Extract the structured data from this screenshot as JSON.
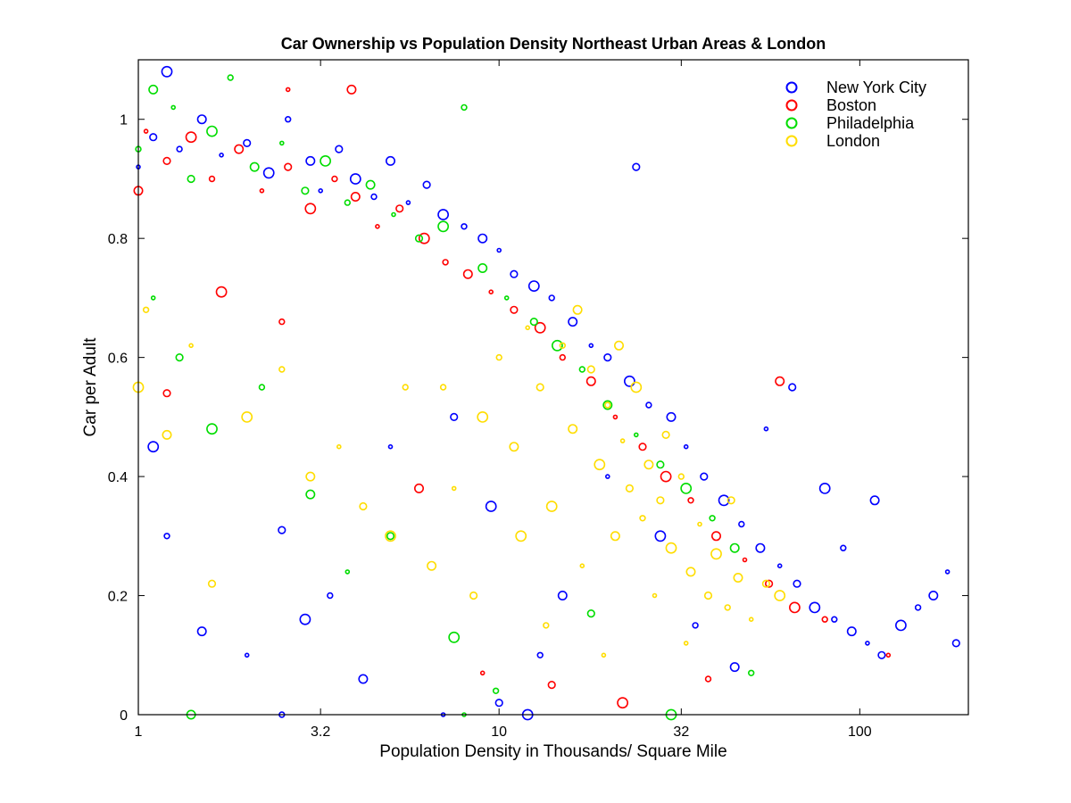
{
  "chart_data": {
    "type": "scatter",
    "title": "Car Ownership vs Population Density Northeast Urban Areas & London",
    "xlabel": "Population Density in Thousands/ Square Mile",
    "ylabel": "Car per Adult",
    "x_scale": "log",
    "xlim": [
      1,
      200
    ],
    "ylim": [
      0,
      1.1
    ],
    "x_ticks": [
      {
        "value": 1,
        "label": "1"
      },
      {
        "value": 3.2,
        "label": "3.2"
      },
      {
        "value": 10,
        "label": "10"
      },
      {
        "value": 32,
        "label": "32"
      },
      {
        "value": 100,
        "label": "100"
      }
    ],
    "y_ticks": [
      {
        "value": 0,
        "label": "0"
      },
      {
        "value": 0.2,
        "label": "0.2"
      },
      {
        "value": 0.4,
        "label": "0.4"
      },
      {
        "value": 0.6,
        "label": "0.6"
      },
      {
        "value": 0.8,
        "label": "0.8"
      },
      {
        "value": 1,
        "label": "1"
      }
    ],
    "grid": false,
    "marker": "open-circle",
    "legend_position": "top-right",
    "series": [
      {
        "name": "New York City",
        "color": "#0000ff",
        "points": [
          [
            1.0,
            0.92
          ],
          [
            1.1,
            0.97
          ],
          [
            1.2,
            1.08
          ],
          [
            1.3,
            0.95
          ],
          [
            1.5,
            1.0
          ],
          [
            1.7,
            0.94
          ],
          [
            2.0,
            0.96
          ],
          [
            2.3,
            0.91
          ],
          [
            2.6,
            1.0
          ],
          [
            3.0,
            0.93
          ],
          [
            3.2,
            0.88
          ],
          [
            3.6,
            0.95
          ],
          [
            4.0,
            0.9
          ],
          [
            4.5,
            0.87
          ],
          [
            5.0,
            0.93
          ],
          [
            5.6,
            0.86
          ],
          [
            6.3,
            0.89
          ],
          [
            7.0,
            0.84
          ],
          [
            8.0,
            0.82
          ],
          [
            9.0,
            0.8
          ],
          [
            10.0,
            0.78
          ],
          [
            11.0,
            0.74
          ],
          [
            12.5,
            0.72
          ],
          [
            14.0,
            0.7
          ],
          [
            16.0,
            0.66
          ],
          [
            18.0,
            0.62
          ],
          [
            20.0,
            0.6
          ],
          [
            23.0,
            0.56
          ],
          [
            26.0,
            0.52
          ],
          [
            30.0,
            0.5
          ],
          [
            33.0,
            0.45
          ],
          [
            37.0,
            0.4
          ],
          [
            42.0,
            0.36
          ],
          [
            47.0,
            0.32
          ],
          [
            53.0,
            0.28
          ],
          [
            60.0,
            0.25
          ],
          [
            67.0,
            0.22
          ],
          [
            75.0,
            0.18
          ],
          [
            85.0,
            0.16
          ],
          [
            95.0,
            0.14
          ],
          [
            105.0,
            0.12
          ],
          [
            115.0,
            0.1
          ],
          [
            130.0,
            0.15
          ],
          [
            145.0,
            0.18
          ],
          [
            160.0,
            0.2
          ],
          [
            175.0,
            0.24
          ],
          [
            185.0,
            0.12
          ],
          [
            1.1,
            0.45
          ],
          [
            1.2,
            0.3
          ],
          [
            1.5,
            0.14
          ],
          [
            2.0,
            0.1
          ],
          [
            2.5,
            0.31
          ],
          [
            2.9,
            0.16
          ],
          [
            3.4,
            0.2
          ],
          [
            4.2,
            0.06
          ],
          [
            5.0,
            0.45
          ],
          [
            7.5,
            0.5
          ],
          [
            9.5,
            0.35
          ],
          [
            13.0,
            0.1
          ],
          [
            15.0,
            0.2
          ],
          [
            20.0,
            0.4
          ],
          [
            24.0,
            0.92
          ],
          [
            28.0,
            0.3
          ],
          [
            35.0,
            0.15
          ],
          [
            45.0,
            0.08
          ],
          [
            55.0,
            0.48
          ],
          [
            65.0,
            0.55
          ],
          [
            80.0,
            0.38
          ],
          [
            90.0,
            0.28
          ],
          [
            110.0,
            0.36
          ],
          [
            7.0,
            0.0
          ],
          [
            10.0,
            0.02
          ],
          [
            12.0,
            0.0
          ],
          [
            2.5,
            0.0
          ]
        ]
      },
      {
        "name": "Boston",
        "color": "#ff0000",
        "points": [
          [
            1.0,
            0.88
          ],
          [
            1.05,
            0.98
          ],
          [
            1.2,
            0.93
          ],
          [
            1.4,
            0.97
          ],
          [
            1.6,
            0.9
          ],
          [
            1.9,
            0.95
          ],
          [
            2.2,
            0.88
          ],
          [
            2.6,
            0.92
          ],
          [
            3.0,
            0.85
          ],
          [
            3.5,
            0.9
          ],
          [
            4.0,
            0.87
          ],
          [
            4.6,
            0.82
          ],
          [
            5.3,
            0.85
          ],
          [
            6.2,
            0.8
          ],
          [
            7.1,
            0.76
          ],
          [
            8.2,
            0.74
          ],
          [
            9.5,
            0.71
          ],
          [
            11.0,
            0.68
          ],
          [
            13.0,
            0.65
          ],
          [
            15.0,
            0.6
          ],
          [
            18.0,
            0.56
          ],
          [
            21.0,
            0.5
          ],
          [
            25.0,
            0.45
          ],
          [
            29.0,
            0.4
          ],
          [
            34.0,
            0.36
          ],
          [
            40.0,
            0.3
          ],
          [
            48.0,
            0.26
          ],
          [
            56.0,
            0.22
          ],
          [
            66.0,
            0.18
          ],
          [
            80.0,
            0.16
          ],
          [
            3.9,
            1.05
          ],
          [
            2.6,
            1.05
          ],
          [
            1.2,
            0.54
          ],
          [
            1.7,
            0.71
          ],
          [
            2.5,
            0.66
          ],
          [
            6.0,
            0.38
          ],
          [
            9.0,
            0.07
          ],
          [
            14.0,
            0.05
          ],
          [
            22.0,
            0.02
          ],
          [
            38.0,
            0.06
          ],
          [
            60.0,
            0.56
          ],
          [
            120.0,
            0.1
          ]
        ]
      },
      {
        "name": "Philadelphia",
        "color": "#00dd00",
        "points": [
          [
            1.0,
            0.95
          ],
          [
            1.1,
            1.05
          ],
          [
            1.25,
            1.02
          ],
          [
            1.4,
            0.9
          ],
          [
            1.6,
            0.98
          ],
          [
            1.8,
            1.07
          ],
          [
            2.1,
            0.92
          ],
          [
            2.5,
            0.96
          ],
          [
            2.9,
            0.88
          ],
          [
            3.3,
            0.93
          ],
          [
            3.8,
            0.86
          ],
          [
            4.4,
            0.89
          ],
          [
            5.1,
            0.84
          ],
          [
            6.0,
            0.8
          ],
          [
            7.0,
            0.82
          ],
          [
            8.0,
            1.02
          ],
          [
            9.0,
            0.75
          ],
          [
            10.5,
            0.7
          ],
          [
            12.5,
            0.66
          ],
          [
            14.5,
            0.62
          ],
          [
            17.0,
            0.58
          ],
          [
            20.0,
            0.52
          ],
          [
            24.0,
            0.47
          ],
          [
            28.0,
            0.42
          ],
          [
            33.0,
            0.38
          ],
          [
            39.0,
            0.33
          ],
          [
            45.0,
            0.28
          ],
          [
            1.1,
            0.7
          ],
          [
            1.3,
            0.6
          ],
          [
            1.6,
            0.48
          ],
          [
            2.2,
            0.55
          ],
          [
            3.0,
            0.37
          ],
          [
            3.8,
            0.24
          ],
          [
            5.0,
            0.3
          ],
          [
            7.5,
            0.13
          ],
          [
            9.8,
            0.04
          ],
          [
            1.4,
            0.0
          ],
          [
            8.0,
            0.0
          ],
          [
            18.0,
            0.17
          ],
          [
            30.0,
            0.0
          ],
          [
            50.0,
            0.07
          ]
        ]
      },
      {
        "name": "London",
        "color": "#ffdd00",
        "points": [
          [
            1.0,
            0.55
          ],
          [
            1.05,
            0.68
          ],
          [
            1.2,
            0.47
          ],
          [
            1.4,
            0.62
          ],
          [
            1.6,
            0.22
          ],
          [
            2.0,
            0.5
          ],
          [
            2.5,
            0.58
          ],
          [
            3.0,
            0.4
          ],
          [
            3.6,
            0.45
          ],
          [
            4.2,
            0.35
          ],
          [
            5.0,
            0.3
          ],
          [
            5.5,
            0.55
          ],
          [
            6.5,
            0.25
          ],
          [
            7.5,
            0.38
          ],
          [
            8.5,
            0.2
          ],
          [
            9.0,
            0.5
          ],
          [
            10.0,
            0.6
          ],
          [
            11.0,
            0.45
          ],
          [
            12.0,
            0.65
          ],
          [
            13.0,
            0.55
          ],
          [
            14.0,
            0.35
          ],
          [
            15.0,
            0.62
          ],
          [
            16.0,
            0.48
          ],
          [
            17.0,
            0.25
          ],
          [
            18.0,
            0.58
          ],
          [
            19.0,
            0.42
          ],
          [
            20.0,
            0.52
          ],
          [
            21.0,
            0.3
          ],
          [
            22.0,
            0.46
          ],
          [
            23.0,
            0.38
          ],
          [
            24.0,
            0.55
          ],
          [
            25.0,
            0.33
          ],
          [
            26.0,
            0.42
          ],
          [
            27.0,
            0.2
          ],
          [
            28.0,
            0.36
          ],
          [
            30.0,
            0.28
          ],
          [
            32.0,
            0.4
          ],
          [
            34.0,
            0.24
          ],
          [
            36.0,
            0.32
          ],
          [
            38.0,
            0.2
          ],
          [
            40.0,
            0.27
          ],
          [
            43.0,
            0.18
          ],
          [
            46.0,
            0.23
          ],
          [
            50.0,
            0.16
          ],
          [
            55.0,
            0.22
          ],
          [
            60.0,
            0.2
          ],
          [
            13.5,
            0.15
          ],
          [
            16.5,
            0.68
          ],
          [
            19.5,
            0.1
          ],
          [
            29.0,
            0.47
          ],
          [
            11.5,
            0.3
          ],
          [
            7.0,
            0.55
          ],
          [
            21.5,
            0.62
          ],
          [
            33.0,
            0.12
          ],
          [
            44.0,
            0.36
          ]
        ]
      }
    ]
  }
}
